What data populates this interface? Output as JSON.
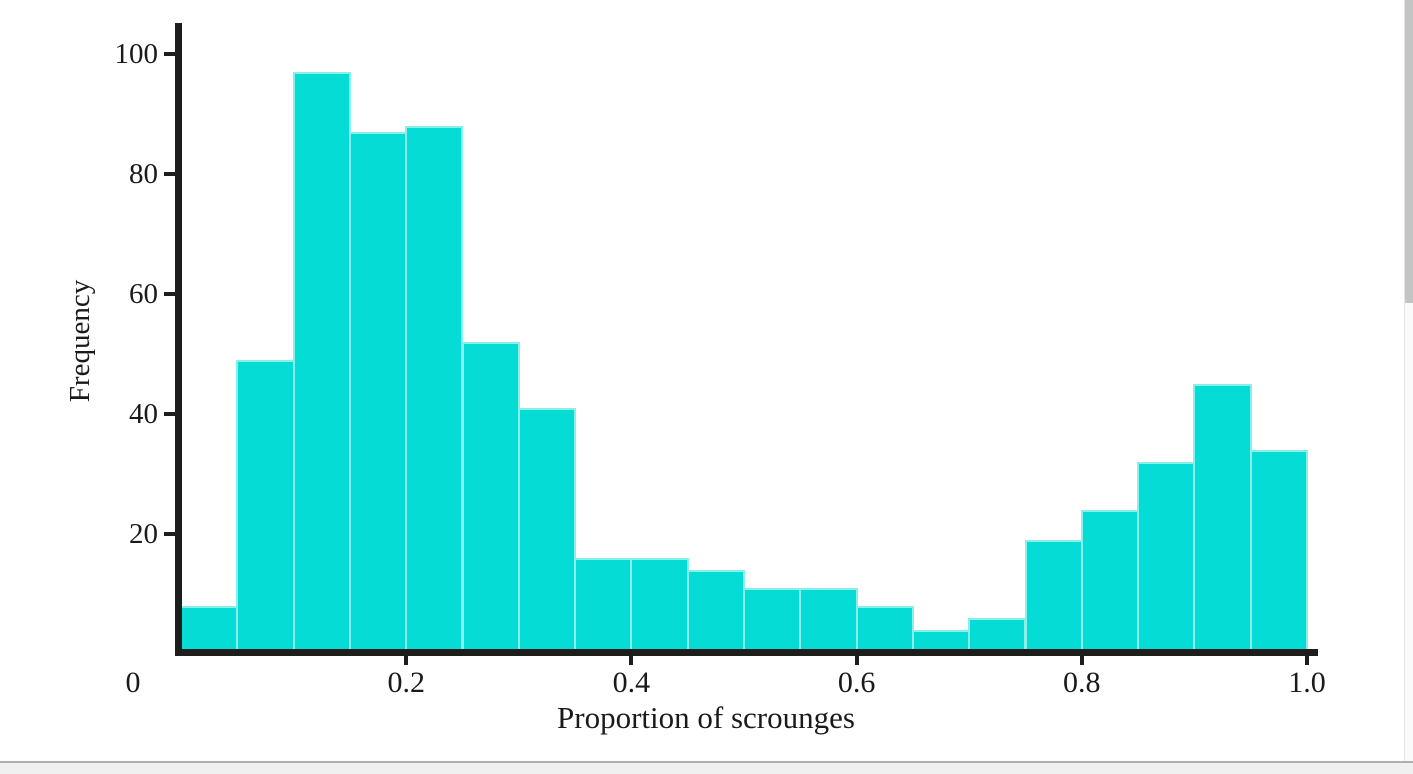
{
  "page": {
    "background": "#ffffff",
    "footer_color": "#f0f0f0",
    "scrollbar_thumb_color": "#c3c5c5"
  },
  "chart_data": {
    "type": "bar",
    "subtype": "histogram",
    "title": "",
    "xlabel": "Proportion of scrounges",
    "ylabel": "Frequency",
    "bin_start": 0.0,
    "bin_width": 0.05,
    "bin_edges": [
      0.0,
      0.05,
      0.1,
      0.15,
      0.2,
      0.25,
      0.3,
      0.35,
      0.4,
      0.45,
      0.5,
      0.55,
      0.6,
      0.65,
      0.7,
      0.75,
      0.8,
      0.85,
      0.9,
      0.95,
      1.0
    ],
    "values": [
      8,
      49,
      97,
      87,
      88,
      52,
      41,
      16,
      16,
      14,
      11,
      11,
      8,
      4,
      6,
      19,
      24,
      32,
      45,
      34
    ],
    "x_ticks": [
      0.2,
      0.4,
      0.6,
      0.8,
      1.0
    ],
    "x_tick_labels": [
      "0.2",
      "0.4",
      "0.6",
      "0.8",
      "1.0"
    ],
    "x_origin_label": "0",
    "y_ticks": [
      20,
      40,
      60,
      80,
      100
    ],
    "y_tick_labels": [
      "20",
      "40",
      "60",
      "80",
      "100"
    ],
    "xlim": [
      0,
      1.0
    ],
    "ylim": [
      0,
      106
    ],
    "grid": false,
    "legend": null,
    "bar_color": "#05dcd6",
    "bar_edge_color": "#8aeee9",
    "axis_color": "#1d1d1b",
    "text_color": "#1a1a18"
  }
}
